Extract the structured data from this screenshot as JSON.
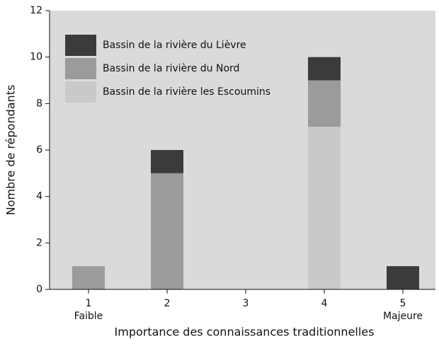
{
  "chart_data": {
    "type": "stacked_bar",
    "xlabel": "Importance des connaissances traditionnelles",
    "ylabel": "Nombre de répondants",
    "categories": [
      "1",
      "2",
      "3",
      "4",
      "5"
    ],
    "category_sublabels": [
      "Faible",
      null,
      null,
      null,
      "Majeure"
    ],
    "series": [
      {
        "name": "Bassin de la rivière du Lièvre",
        "color": "#3b3b3b",
        "values": [
          0,
          1,
          0,
          1,
          1
        ]
      },
      {
        "name": "Bassin de la rivière du Nord",
        "color": "#9b9b9b",
        "values": [
          1,
          5,
          0,
          2,
          0
        ]
      },
      {
        "name": "Bassin de la rivière les Escoumins",
        "color": "#c9c9c9",
        "values": [
          0,
          0,
          0,
          7,
          0
        ]
      }
    ],
    "ylim": [
      0,
      12
    ],
    "yticks": [
      0,
      2,
      4,
      6,
      8,
      10,
      12
    ],
    "legend": "upper left"
  }
}
